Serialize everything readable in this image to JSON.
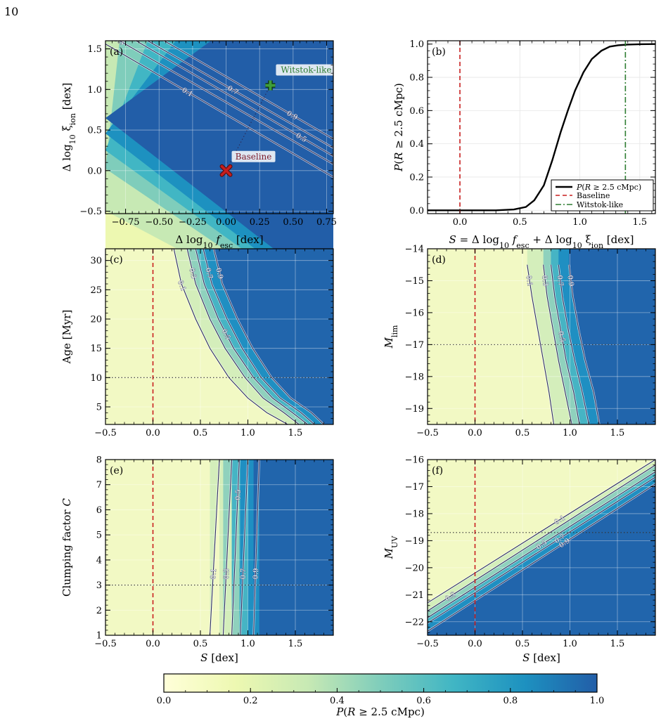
{
  "page_number": "10",
  "colors": {
    "colormap": [
      "#ffffd9",
      "#edf8b1",
      "#c7e9b4",
      "#7fcdbb",
      "#41b6c4",
      "#1d91c0",
      "#225ea8"
    ],
    "baseline_red": "#c81e1e",
    "witstok_green": "#2e7d32",
    "contour_line": "#2b2d5c",
    "contour_halo": "#ffffff"
  },
  "chart_data": [
    {
      "panel": "a",
      "type": "heatmap",
      "panel_label": "(a)",
      "xlabel": "Δ log10 f_esc [dex]",
      "ylabel": "Δ log10 ξ_ion [dex]",
      "xlim": [
        -0.9,
        0.8
      ],
      "ylim": [
        -0.53,
        1.6
      ],
      "xticks": [
        -0.75,
        -0.5,
        -0.25,
        0.0,
        0.25,
        0.5,
        0.75
      ],
      "xtick_labels": [
        "−0.75",
        "−0.50",
        "−0.25",
        "0.00",
        "0.25",
        "0.50",
        "0.75"
      ],
      "yticks": [
        -0.5,
        0.0,
        0.5,
        1.0,
        1.5
      ],
      "ytick_labels": [
        "−0.5",
        "0.0",
        "0.5",
        "1.0",
        "1.5"
      ],
      "contours": [
        {
          "level": 0.1,
          "label": "0.1",
          "x": [
            -0.9,
            0.8
          ],
          "y": [
            1.56,
            -0.08
          ]
        },
        {
          "level": 0.3,
          "label": "0.3",
          "x": [
            -0.9,
            0.8
          ],
          "y": [
            1.7,
            0.08
          ]
        },
        {
          "level": 0.5,
          "label": "0.5",
          "x": [
            -0.9,
            0.8
          ],
          "y": [
            1.82,
            0.18
          ]
        },
        {
          "level": 0.7,
          "label": "0.7",
          "x": [
            -0.9,
            0.8
          ],
          "y": [
            1.9,
            0.28
          ]
        },
        {
          "level": 0.9,
          "label": "0.9",
          "x": [
            -0.9,
            0.8
          ],
          "y": [
            2.02,
            0.39
          ]
        }
      ],
      "markers": [
        {
          "name": "Baseline",
          "label": "Baseline",
          "x": 0.0,
          "y": 0.0,
          "symbol": "x"
        },
        {
          "name": "Witstok-like",
          "label": "Witstok-like",
          "x": 0.33,
          "y": 1.05,
          "symbol": "plus"
        }
      ],
      "grid": true
    },
    {
      "panel": "b",
      "type": "line",
      "panel_label": "(b)",
      "xlabel": "S = Δ log10 f_esc + Δ log10 ξ_ion [dex]",
      "ylabel": "P(R ≥ 2.5 cMpc)",
      "xlim": [
        -0.27,
        1.63
      ],
      "ylim": [
        -0.02,
        1.02
      ],
      "xticks": [
        0.0,
        0.5,
        1.0,
        1.5
      ],
      "xtick_labels": [
        "0.0",
        "0.5",
        "1.0",
        "1.5"
      ],
      "yticks": [
        0.0,
        0.2,
        0.4,
        0.6,
        0.8,
        1.0
      ],
      "ytick_labels": [
        "0.0",
        "0.2",
        "0.4",
        "0.6",
        "0.8",
        "1.0"
      ],
      "series": [
        {
          "name": "P(R ≥ 2.5 cMpc)",
          "x": [
            -0.27,
            0.3,
            0.45,
            0.55,
            0.62,
            0.7,
            0.77,
            0.84,
            0.9,
            0.96,
            1.03,
            1.1,
            1.18,
            1.25,
            1.32,
            1.4,
            1.5,
            1.63
          ],
          "y": [
            0.0,
            0.0,
            0.005,
            0.02,
            0.06,
            0.15,
            0.3,
            0.47,
            0.6,
            0.72,
            0.83,
            0.91,
            0.96,
            0.985,
            0.993,
            0.997,
            0.999,
            1.0
          ]
        }
      ],
      "vlines": [
        {
          "name": "Baseline",
          "x": 0.0
        },
        {
          "name": "Witstok-like",
          "x": 1.38
        }
      ],
      "legend": {
        "placement": "lower-right",
        "entries": [
          "P(R ≥ 2.5 cMpc)",
          "Baseline",
          "Witstok-like"
        ]
      },
      "grid": true
    },
    {
      "panel": "c",
      "type": "heatmap",
      "panel_label": "(c)",
      "xlabel": "",
      "ylabel": "Age [Myr]",
      "xlim": [
        -0.5,
        1.9
      ],
      "ylim": [
        2,
        32
      ],
      "xticks": [
        -0.5,
        0.0,
        0.5,
        1.0,
        1.5
      ],
      "xtick_labels": [
        "−0.5",
        "0.0",
        "0.5",
        "1.0",
        "1.5"
      ],
      "yticks": [
        5,
        10,
        15,
        20,
        25,
        30
      ],
      "ytick_labels": [
        "5",
        "10",
        "15",
        "20",
        "25",
        "30"
      ],
      "contours": [
        {
          "level": 0.1,
          "label": "0.1",
          "x": [
            0.22,
            0.3,
            0.45,
            0.6,
            0.8,
            1.0,
            1.2,
            1.42
          ],
          "y": [
            32,
            26,
            20,
            15,
            10,
            6.5,
            4,
            2
          ]
        },
        {
          "level": 0.3,
          "label": "0.3",
          "x": [
            0.36,
            0.45,
            0.6,
            0.76,
            0.97,
            1.16,
            1.38,
            1.54
          ],
          "y": [
            32,
            26,
            20,
            15,
            10,
            6.5,
            4,
            2
          ]
        },
        {
          "level": 0.5,
          "label": "0.5",
          "x": [
            0.45,
            0.54,
            0.69,
            0.85,
            1.06,
            1.26,
            1.47,
            1.63
          ],
          "y": [
            32,
            26,
            20,
            15,
            10,
            6.5,
            4,
            2
          ]
        },
        {
          "level": 0.7,
          "label": "0.7",
          "x": [
            0.53,
            0.62,
            0.78,
            0.94,
            1.14,
            1.34,
            1.56,
            1.7
          ],
          "y": [
            32,
            26,
            20,
            15,
            10,
            6.5,
            4,
            2
          ]
        },
        {
          "level": 0.9,
          "label": "0.9",
          "x": [
            0.64,
            0.73,
            0.89,
            1.05,
            1.25,
            1.45,
            1.67,
            1.8
          ],
          "y": [
            32,
            26,
            20,
            15,
            10,
            6.5,
            4,
            2
          ]
        }
      ],
      "vline": 0.0,
      "hline": 10,
      "grid": true
    },
    {
      "panel": "d",
      "type": "heatmap",
      "panel_label": "(d)",
      "xlabel": "",
      "ylabel": "M_lim",
      "xlim": [
        -0.5,
        1.9
      ],
      "ylim": [
        -19.5,
        -14
      ],
      "xticks": [
        -0.5,
        0.0,
        0.5,
        1.0,
        1.5
      ],
      "xtick_labels": [
        "−0.5",
        "0.0",
        "0.5",
        "1.0",
        "1.5"
      ],
      "yticks": [
        -19,
        -18,
        -17,
        -16,
        -15,
        -14
      ],
      "ytick_labels": [
        "−19",
        "−18",
        "−17",
        "−16",
        "−15",
        "−14"
      ],
      "contours": [
        {
          "level": 0.1,
          "label": "0.1",
          "x": [
            0.55,
            0.6,
            0.66,
            0.72,
            0.78,
            0.83
          ],
          "y": [
            -14.5,
            -15.5,
            -16.5,
            -17.5,
            -18.5,
            -19.5
          ]
        },
        {
          "level": 0.3,
          "label": "0.3",
          "x": [
            0.72,
            0.76,
            0.82,
            0.88,
            0.95,
            1.02
          ],
          "y": [
            -14.5,
            -15.5,
            -16.5,
            -17.5,
            -18.5,
            -19.5
          ]
        },
        {
          "level": 0.5,
          "label": "0.5",
          "x": [
            0.8,
            0.84,
            0.9,
            0.96,
            1.04,
            1.1
          ],
          "y": [
            -14.5,
            -15.5,
            -16.5,
            -17.5,
            -18.5,
            -19.5
          ]
        },
        {
          "level": 0.7,
          "label": "0.7",
          "x": [
            0.88,
            0.92,
            0.98,
            1.05,
            1.13,
            1.2
          ],
          "y": [
            -14.5,
            -15.5,
            -16.5,
            -17.5,
            -18.5,
            -19.5
          ]
        },
        {
          "level": 0.9,
          "label": "0.9",
          "x": [
            0.99,
            1.03,
            1.09,
            1.16,
            1.25,
            1.31
          ],
          "y": [
            -14.5,
            -15.5,
            -16.5,
            -17.5,
            -18.5,
            -19.5
          ]
        }
      ],
      "vline": 0.0,
      "hline": -17,
      "grid": true
    },
    {
      "panel": "e",
      "type": "heatmap",
      "panel_label": "(e)",
      "xlabel": "S [dex]",
      "ylabel": "Clumping factor C",
      "xlim": [
        -0.5,
        1.9
      ],
      "ylim": [
        1,
        8
      ],
      "xticks": [
        -0.5,
        0.0,
        0.5,
        1.0,
        1.5
      ],
      "xtick_labels": [
        "−0.5",
        "0.0",
        "0.5",
        "1.0",
        "1.5"
      ],
      "yticks": [
        1,
        2,
        3,
        4,
        5,
        6,
        7,
        8
      ],
      "ytick_labels": [
        "1",
        "2",
        "3",
        "4",
        "5",
        "6",
        "7",
        "8"
      ],
      "contours": [
        {
          "level": 0.1,
          "label": "0.1",
          "x": [
            0.6,
            0.7
          ],
          "y": [
            1,
            8
          ]
        },
        {
          "level": 0.3,
          "label": "0.3",
          "x": [
            0.74,
            0.83
          ],
          "y": [
            1,
            8
          ]
        },
        {
          "level": 0.5,
          "label": "0.5",
          "x": [
            0.83,
            0.91
          ],
          "y": [
            1,
            8
          ]
        },
        {
          "level": 0.7,
          "label": "0.7",
          "x": [
            0.92,
            1.0
          ],
          "y": [
            1,
            8
          ]
        },
        {
          "level": 0.9,
          "label": "0.9",
          "x": [
            1.06,
            1.12
          ],
          "y": [
            1,
            8
          ]
        }
      ],
      "vline": 0.0,
      "hline": 3,
      "grid": true
    },
    {
      "panel": "f",
      "type": "heatmap",
      "panel_label": "(f)",
      "xlabel": "S [dex]",
      "ylabel": "M_UV",
      "xlim": [
        -0.5,
        1.9
      ],
      "ylim": [
        -22.5,
        -16
      ],
      "xticks": [
        -0.5,
        0.0,
        0.5,
        1.0,
        1.5
      ],
      "xtick_labels": [
        "−0.5",
        "0.0",
        "0.5",
        "1.0",
        "1.5"
      ],
      "yticks": [
        -22,
        -21,
        -20,
        -19,
        -18,
        -17,
        -16
      ],
      "ytick_labels": [
        "−22",
        "−21",
        "−20",
        "−19",
        "−18",
        "−17",
        "−16"
      ],
      "contours": [
        {
          "level": 0.1,
          "label": "0.1",
          "x": [
            -0.5,
            1.9
          ],
          "y": [
            -21.3,
            -16.0
          ]
        },
        {
          "level": 0.3,
          "label": "0.3",
          "x": [
            -0.5,
            1.9
          ],
          "y": [
            -21.6,
            -16.2
          ]
        },
        {
          "level": 0.5,
          "label": "0.5",
          "x": [
            -0.5,
            1.9
          ],
          "y": [
            -21.85,
            -16.45
          ]
        },
        {
          "level": 0.7,
          "label": "0.7",
          "x": [
            -0.5,
            1.9
          ],
          "y": [
            -22.05,
            -16.65
          ]
        },
        {
          "level": 0.9,
          "label": "0.9",
          "x": [
            -0.5,
            1.9
          ],
          "y": [
            -22.35,
            -16.9
          ]
        }
      ],
      "vline": 0.0,
      "hline": -18.7,
      "grid": true
    }
  ],
  "colorbar": {
    "label": "P(R ≥ 2.5 cMpc)",
    "range": [
      0.0,
      1.0
    ],
    "ticks": [
      0.0,
      0.2,
      0.4,
      0.6,
      0.8,
      1.0
    ],
    "tick_labels": [
      "0.0",
      "0.2",
      "0.4",
      "0.6",
      "0.8",
      "1.0"
    ]
  }
}
